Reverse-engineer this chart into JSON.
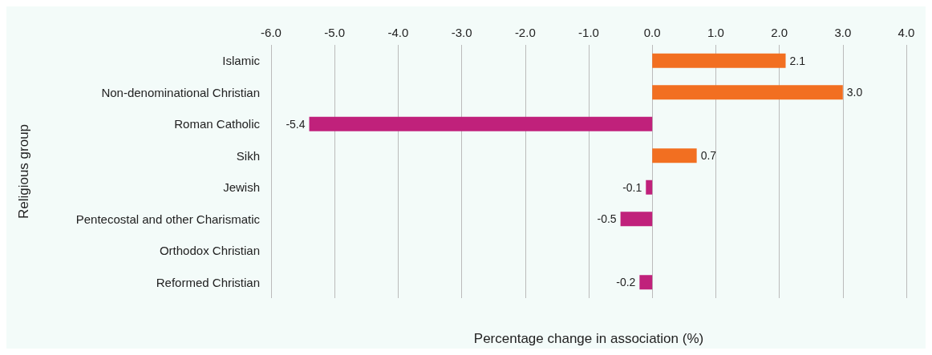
{
  "chart_data": {
    "type": "bar",
    "orientation": "horizontal",
    "xlabel": "Percentage change in association (%)",
    "ylabel": "Religious group",
    "categories": [
      "Islamic",
      "Non-denominational Christian",
      "Roman Catholic",
      "Sikh",
      "Jewish",
      "Pentecostal and other Charismatic",
      "Orthodox Christian",
      "Reformed Christian"
    ],
    "values": [
      2.1,
      3.0,
      -5.4,
      0.7,
      -0.1,
      -0.5,
      null,
      -0.2
    ],
    "value_labels": [
      "2.1",
      "3.0",
      "-5.4",
      "0.7",
      "-0.1",
      "-0.5",
      null,
      "-0.2"
    ],
    "colors": [
      "#f26f21",
      "#f26f21",
      "#c0217b",
      "#f26f21",
      "#c0217b",
      "#c0217b",
      "#c0217b",
      "#c0217b"
    ],
    "xlim": [
      -6,
      4
    ],
    "xticks": [
      {
        "value": -6,
        "label": "-6.0"
      },
      {
        "value": -5,
        "label": "-5.0"
      },
      {
        "value": -4,
        "label": "-4.0"
      },
      {
        "value": -3,
        "label": "-3.0"
      },
      {
        "value": -2,
        "label": "-2.0"
      },
      {
        "value": -1,
        "label": "-1.0"
      },
      {
        "value": 0,
        "label": "0.0"
      },
      {
        "value": 1,
        "label": "1.0"
      },
      {
        "value": 2,
        "label": "2.0"
      },
      {
        "value": 3,
        "label": "3.0"
      },
      {
        "value": 4,
        "label": "4.0"
      }
    ],
    "grid": "x"
  }
}
